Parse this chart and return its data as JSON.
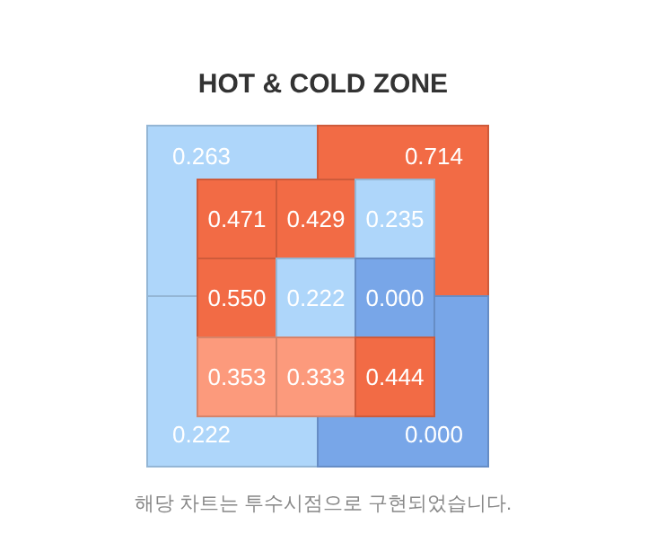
{
  "chart_data": [
    {
      "type": "heatmap",
      "title": "HOT & COLD ZONE",
      "categories": [
        null,
        null
      ],
      "y_categories": [
        null,
        null
      ],
      "cells": [
        [
          0.263,
          0.714
        ],
        [
          0.222,
          0.0
        ]
      ],
      "cell_labels": [
        [
          "0.263",
          "0.714"
        ],
        [
          "0.222",
          "0.000"
        ]
      ],
      "colors": [
        [
          "#aed6fa",
          "#f26b45"
        ],
        [
          "#aed6fa",
          "#78a6e8"
        ]
      ],
      "annotations": [
        "해당 차트는 투수시점으로 구현되었습니다."
      ]
    },
    {
      "type": "heatmap",
      "categories": [
        null,
        null,
        null
      ],
      "y_categories": [
        null,
        null,
        null
      ],
      "cells": [
        [
          0.471,
          0.429,
          0.235
        ],
        [
          0.55,
          0.222,
          0.0
        ],
        [
          0.353,
          0.333,
          0.444
        ]
      ],
      "cell_labels": [
        [
          "0.471",
          "0.429",
          "0.235"
        ],
        [
          "0.550",
          "0.222",
          "0.000"
        ],
        [
          "0.353",
          "0.333",
          "0.444"
        ]
      ],
      "colors": [
        [
          "#f26b45",
          "#f26b45",
          "#aed6fa"
        ],
        [
          "#f26b45",
          "#aed6fa",
          "#78a6e8"
        ],
        [
          "#fc9a7c",
          "#fc9a7c",
          "#f26b45"
        ]
      ]
    }
  ]
}
